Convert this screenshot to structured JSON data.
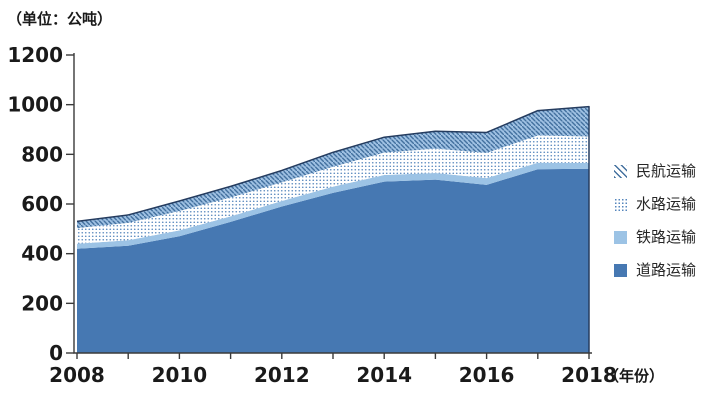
{
  "chart_data": {
    "type": "area",
    "stacked": true,
    "unit_label": "（单位：公吨）",
    "x_axis_label": "（年份）",
    "years": [
      2008,
      2009,
      2010,
      2011,
      2012,
      2013,
      2014,
      2015,
      2016,
      2017,
      2018
    ],
    "x_tick_labels_shown": [
      "2008",
      "2010",
      "2012",
      "2014",
      "2016",
      "2018"
    ],
    "y_axis": {
      "min": 0,
      "max": 1200,
      "ticks": [
        0,
        200,
        400,
        600,
        800,
        1000,
        1200
      ]
    },
    "series": [
      {
        "name": "道路运输",
        "key": "road",
        "values": [
          420,
          432,
          470,
          528,
          590,
          645,
          690,
          698,
          677,
          740,
          742
        ]
      },
      {
        "name": "铁路运输",
        "key": "rail",
        "values": [
          20,
          22,
          24,
          22,
          22,
          25,
          27,
          27,
          27,
          26,
          23
        ]
      },
      {
        "name": "水路运输",
        "key": "water",
        "values": [
          63,
          70,
          78,
          76,
          75,
          80,
          90,
          98,
          102,
          110,
          107
        ]
      },
      {
        "name": "民航运输",
        "key": "aviation",
        "values": [
          27,
          32,
          40,
          45,
          48,
          58,
          62,
          70,
          82,
          100,
          120
        ]
      }
    ],
    "legend": [
      {
        "label": "民航运输",
        "swatch": "hatch"
      },
      {
        "label": "水路运输",
        "swatch": "dots"
      },
      {
        "label": "铁路运输",
        "swatch": "rail"
      },
      {
        "label": "道路运输",
        "swatch": "road"
      }
    ],
    "legend_position": "right",
    "grid": "off",
    "colors": {
      "road": "#4678B2",
      "rail": "#9CC3E5",
      "water_dot": "#5586BC",
      "water_bg": "#FFFFFF",
      "aviation_line": "#44719F",
      "aviation_bg": "#9FC1E3",
      "outline": "#253C5F",
      "axis": "#3A3A3A",
      "text": "#1A1A1A"
    }
  }
}
